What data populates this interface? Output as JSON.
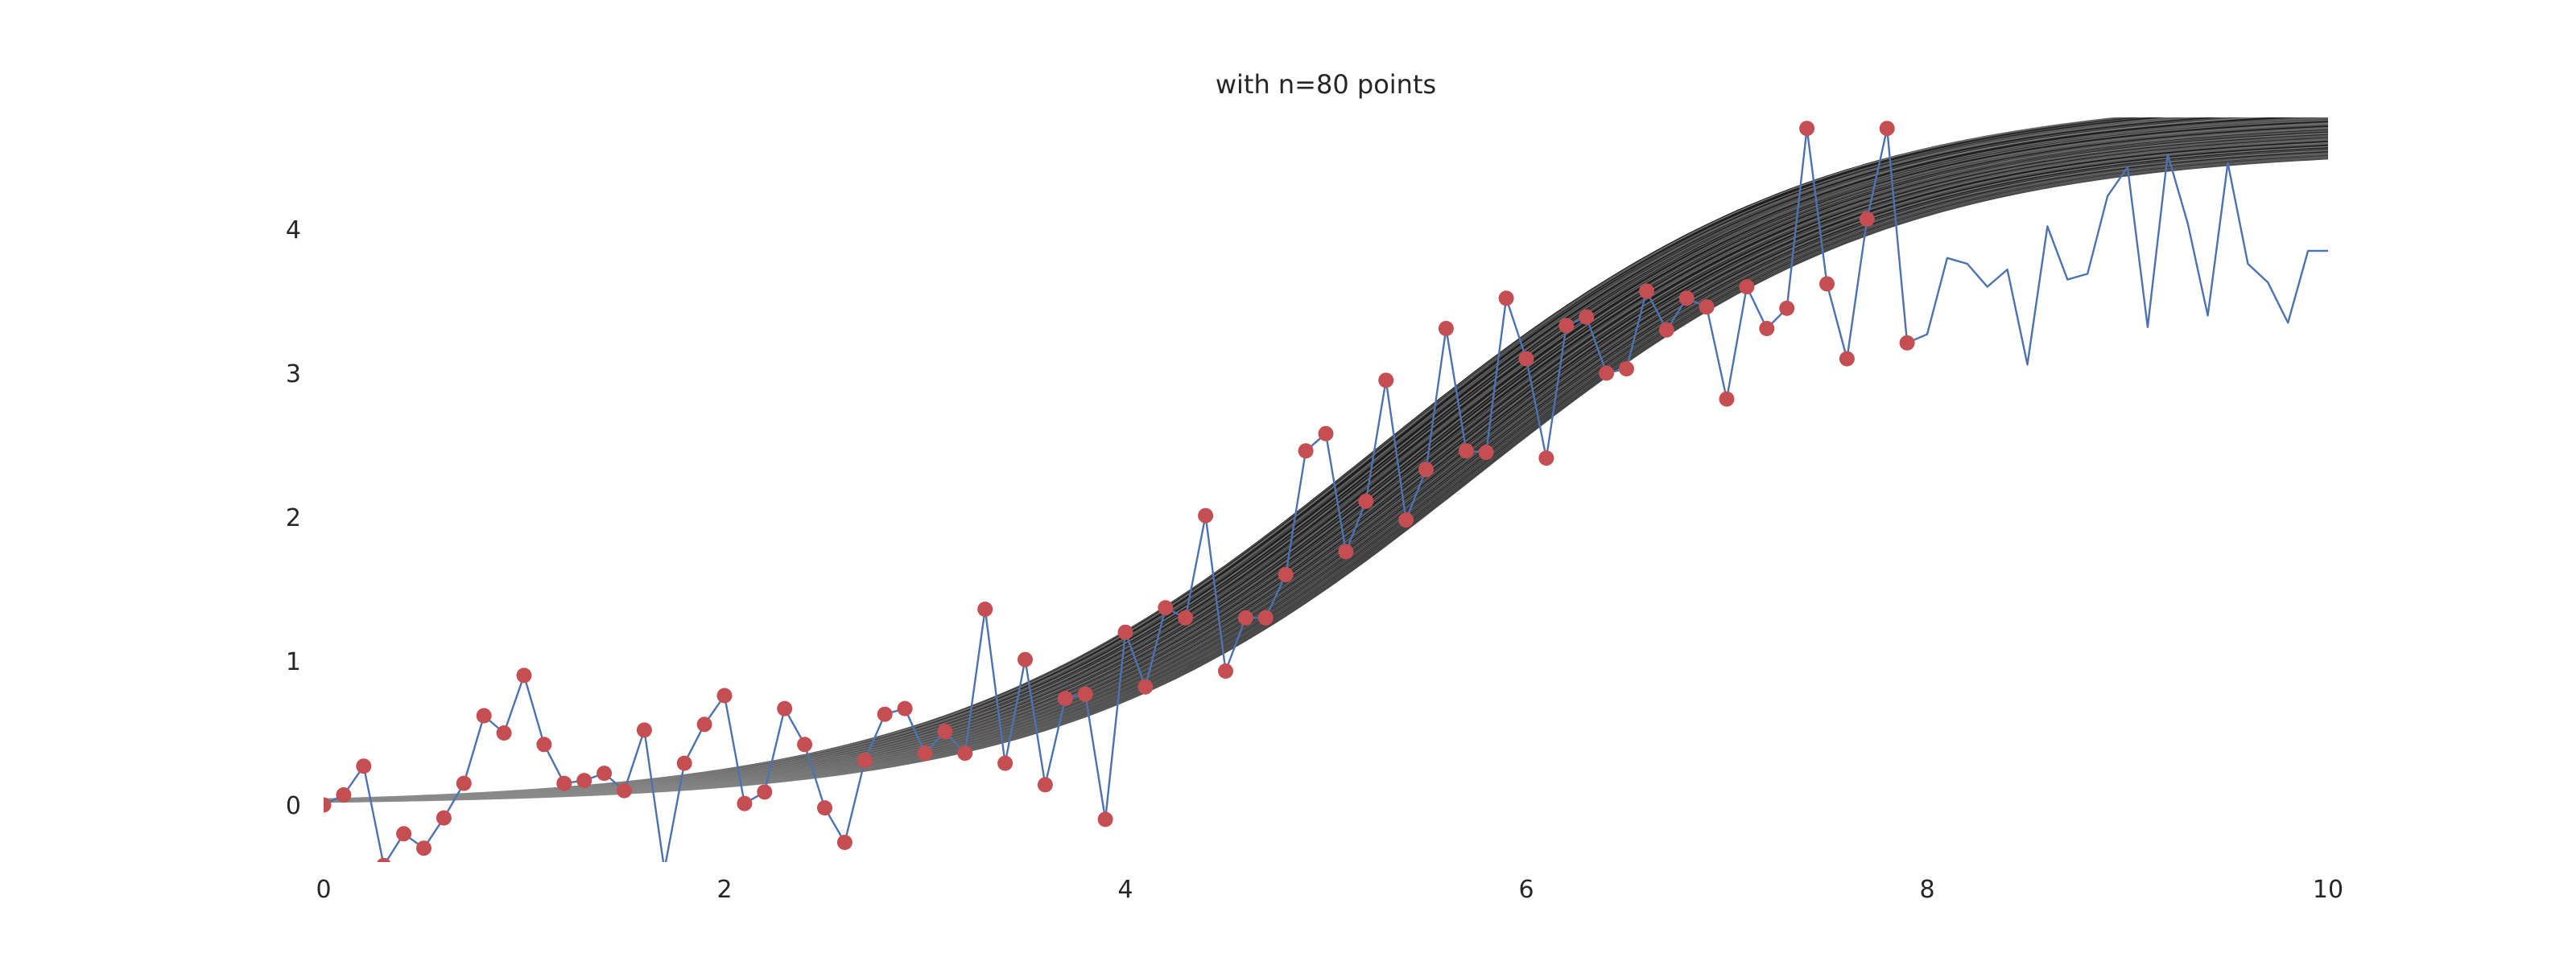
{
  "chart_data": {
    "type": "line",
    "title": "with n=80 points",
    "xlabel": "",
    "ylabel": "",
    "xlim": [
      0,
      10
    ],
    "ylim": [
      -0.4,
      4.8
    ],
    "x_ticks": [
      "0",
      "2",
      "4",
      "6",
      "8",
      "10"
    ],
    "y_ticks": [
      "0",
      "1",
      "2",
      "3",
      "4"
    ],
    "grid": false,
    "legend": "none",
    "colors": {
      "observed_line": "#4c72b0",
      "observed_points": "#c44e52",
      "posterior_band": "#1e1e1e",
      "posterior_draws": "#8c8c8c"
    },
    "posterior_curves": {
      "description_of_form": "logistic",
      "lower": {
        "L": 4.56,
        "k": 0.96,
        "x0": 5.75
      },
      "upper": {
        "L": 4.95,
        "k": 0.9,
        "x0": 5.25
      },
      "n_draws_shown": 60
    },
    "series": [
      {
        "type": "line",
        "x": [
          0.0,
          0.1,
          0.2,
          0.3,
          0.4,
          0.5,
          0.6,
          0.7,
          0.8,
          0.9,
          1.0,
          1.1,
          1.2,
          1.3,
          1.4,
          1.5,
          1.6,
          1.7,
          1.8,
          1.9,
          2.0,
          2.1,
          2.2,
          2.3,
          2.4,
          2.5,
          2.6,
          2.7,
          2.8,
          2.9,
          3.0,
          3.1,
          3.2,
          3.3,
          3.4,
          3.5,
          3.6,
          3.7,
          3.8,
          3.9,
          4.0,
          4.1,
          4.2,
          4.3,
          4.4,
          4.5,
          4.6,
          4.7,
          4.8,
          4.9,
          5.0,
          5.1,
          5.2,
          5.3,
          5.4,
          5.5,
          5.6,
          5.7,
          5.8,
          5.9,
          6.0,
          6.1,
          6.2,
          6.3,
          6.4,
          6.5,
          6.6,
          6.7,
          6.8,
          6.9,
          7.0,
          7.1,
          7.2,
          7.3,
          7.4,
          7.5,
          7.6,
          7.7,
          7.8,
          7.9,
          8.0,
          8.1,
          8.2,
          8.3,
          8.4,
          8.5,
          8.6,
          8.7,
          8.8,
          8.9,
          9.0,
          9.1,
          9.2,
          9.3,
          9.4,
          9.5,
          9.6,
          9.7,
          9.8,
          9.9,
          10.0
        ],
        "y": [
          0.0,
          0.07,
          0.27,
          -0.42,
          -0.2,
          -0.3,
          -0.09,
          0.15,
          0.62,
          0.5,
          0.9,
          0.42,
          0.15,
          0.17,
          0.22,
          0.1,
          0.52,
          -0.45,
          0.29,
          0.56,
          0.76,
          0.01,
          0.09,
          0.67,
          0.42,
          -0.02,
          -0.26,
          0.31,
          0.63,
          0.67,
          0.36,
          0.51,
          0.36,
          1.36,
          0.29,
          1.01,
          0.14,
          0.74,
          0.77,
          -0.1,
          1.2,
          0.82,
          1.37,
          1.3,
          2.01,
          0.93,
          1.3,
          1.3,
          1.6,
          2.46,
          2.58,
          1.76,
          2.11,
          2.95,
          1.98,
          2.33,
          3.31,
          2.46,
          2.45,
          3.52,
          3.1,
          2.41,
          3.33,
          3.39,
          3.0,
          3.03,
          3.57,
          3.3,
          3.52,
          3.46,
          2.82,
          3.6,
          3.31,
          3.45,
          4.7,
          3.62,
          3.1,
          4.07,
          4.7,
          3.21,
          3.27,
          3.8,
          3.76,
          3.6,
          3.72,
          3.06,
          4.02,
          3.65,
          3.69,
          4.23,
          4.43,
          3.32,
          4.52,
          4.04,
          3.4,
          4.46,
          3.76,
          3.63,
          3.35,
          3.85,
          3.85
        ]
      },
      {
        "type": "scatter",
        "x": [
          0.0,
          0.1,
          0.2,
          0.3,
          0.4,
          0.5,
          0.6,
          0.7,
          0.8,
          0.9,
          1.0,
          1.1,
          1.2,
          1.3,
          1.4,
          1.5,
          1.6,
          1.7,
          1.8,
          1.9,
          2.0,
          2.1,
          2.2,
          2.3,
          2.4,
          2.5,
          2.6,
          2.7,
          2.8,
          2.9,
          3.0,
          3.1,
          3.2,
          3.3,
          3.4,
          3.5,
          3.6,
          3.7,
          3.8,
          3.9,
          4.0,
          4.1,
          4.2,
          4.3,
          4.4,
          4.5,
          4.6,
          4.7,
          4.8,
          4.9,
          5.0,
          5.1,
          5.2,
          5.3,
          5.4,
          5.5,
          5.6,
          5.7,
          5.8,
          5.9,
          6.0,
          6.1,
          6.2,
          6.3,
          6.4,
          6.5,
          6.6,
          6.7,
          6.8,
          6.9,
          7.0,
          7.1,
          7.2,
          7.3,
          7.4,
          7.5,
          7.6,
          7.7,
          7.8,
          7.9
        ],
        "y": [
          0.0,
          0.07,
          0.27,
          -0.42,
          -0.2,
          -0.3,
          -0.09,
          0.15,
          0.62,
          0.5,
          0.9,
          0.42,
          0.15,
          0.17,
          0.22,
          0.1,
          0.52,
          -0.45,
          0.29,
          0.56,
          0.76,
          0.01,
          0.09,
          0.67,
          0.42,
          -0.02,
          -0.26,
          0.31,
          0.63,
          0.67,
          0.36,
          0.51,
          0.36,
          1.36,
          0.29,
          1.01,
          0.14,
          0.74,
          0.77,
          -0.1,
          1.2,
          0.82,
          1.37,
          1.3,
          2.01,
          0.93,
          1.3,
          1.3,
          1.6,
          2.46,
          2.58,
          1.76,
          2.11,
          2.95,
          1.98,
          2.33,
          3.31,
          2.46,
          2.45,
          3.52,
          3.1,
          2.41,
          3.33,
          3.39,
          3.0,
          3.03,
          3.57,
          3.3,
          3.52,
          3.46,
          2.82,
          3.6,
          3.31,
          3.45,
          4.7,
          3.62,
          3.1,
          4.07,
          4.7,
          3.21
        ]
      }
    ]
  }
}
